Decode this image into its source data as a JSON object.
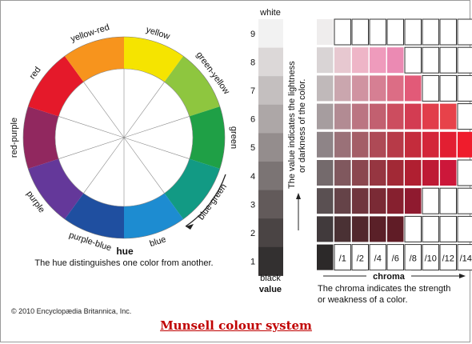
{
  "title": "Munsell colour system",
  "copyright": "© 2010 Encyclopædia Britannica, Inc.",
  "hue_wheel": {
    "label": "hue",
    "caption": "The hue distinguishes one color from another.",
    "segments": [
      {
        "name": "yellow",
        "color": "#f5e400"
      },
      {
        "name": "green-yellow",
        "color": "#8ec63f"
      },
      {
        "name": "green",
        "color": "#1fa046"
      },
      {
        "name": "blue-green",
        "color": "#129a84"
      },
      {
        "name": "blue",
        "color": "#1d8cd1"
      },
      {
        "name": "purple-blue",
        "color": "#1f4fa0"
      },
      {
        "name": "purple",
        "color": "#64389a"
      },
      {
        "name": "red-purple",
        "color": "#91285f"
      },
      {
        "name": "red",
        "color": "#e5192a"
      },
      {
        "name": "yellow-red",
        "color": "#f7941d"
      }
    ]
  },
  "value_scale": {
    "top_label": "white",
    "bottom_label": "black",
    "axis_label": "value",
    "levels": [
      "9",
      "8",
      "7",
      "6",
      "5",
      "4",
      "3",
      "2",
      "1"
    ],
    "gray_colors": [
      "#f2f2f2",
      "#dcd8d8",
      "#c4bfbf",
      "#ada7a7",
      "#948d8d",
      "#7b7474",
      "#625a5a",
      "#4a4444",
      "#333030"
    ],
    "note_line1": "The value indicates the lightness",
    "note_line2": "or darkness of the color."
  },
  "chroma_grid": {
    "axis_label": "chroma",
    "chroma_labels": [
      "/1",
      "/2",
      "/4",
      "/6",
      "/8",
      "/10",
      "/12",
      "/14"
    ],
    "caption_line1": "The chroma indicates the strength",
    "caption_line2": "or weakness of a color.",
    "rows": [
      {
        "value": "9",
        "colors": [
          "#efeded",
          null,
          null,
          null,
          null,
          null,
          null,
          null,
          null
        ]
      },
      {
        "value": "8",
        "colors": [
          "#d9d4d5",
          "#e7c8d0",
          "#eeb5c7",
          "#ef9bbc",
          "#eb8ab3",
          null,
          null,
          null,
          null
        ]
      },
      {
        "value": "7",
        "colors": [
          "#c0b9ba",
          "#caa6ae",
          "#d093a1",
          "#d67f93",
          "#dc6d85",
          "#e25a78",
          null,
          null,
          null
        ]
      },
      {
        "value": "6",
        "colors": [
          "#a69d9f",
          "#b28b93",
          "#bb7582",
          "#c26070",
          "#cc4d5f",
          "#d33c52",
          "#e13e4b",
          "#e7424a",
          null
        ]
      },
      {
        "value": "5",
        "colors": [
          "#8e8487",
          "#9a7178",
          "#a45e67",
          "#ae4a56",
          "#b73a48",
          "#c42c3c",
          "#d3263a",
          "#e21f32",
          "#ef1c2c"
        ]
      },
      {
        "value": "4",
        "colors": [
          "#746a6c",
          "#80585e",
          "#8b474f",
          "#963641",
          "#a22936",
          "#b01f31",
          "#be1a35",
          "#cc173a",
          null
        ]
      },
      {
        "value": "3",
        "colors": [
          "#5a5052",
          "#654348",
          "#70363e",
          "#7a2a35",
          "#86202f",
          "#8f1a2f",
          null,
          null,
          null
        ]
      },
      {
        "value": "2",
        "colors": [
          "#413a3c",
          "#4a3134",
          "#52282d",
          "#5a2028",
          "#601c26",
          null,
          null,
          null,
          null
        ]
      },
      {
        "value": "1",
        "colors": [
          "#2c2929",
          null,
          null,
          null,
          null,
          null,
          null,
          null,
          null
        ]
      }
    ]
  }
}
